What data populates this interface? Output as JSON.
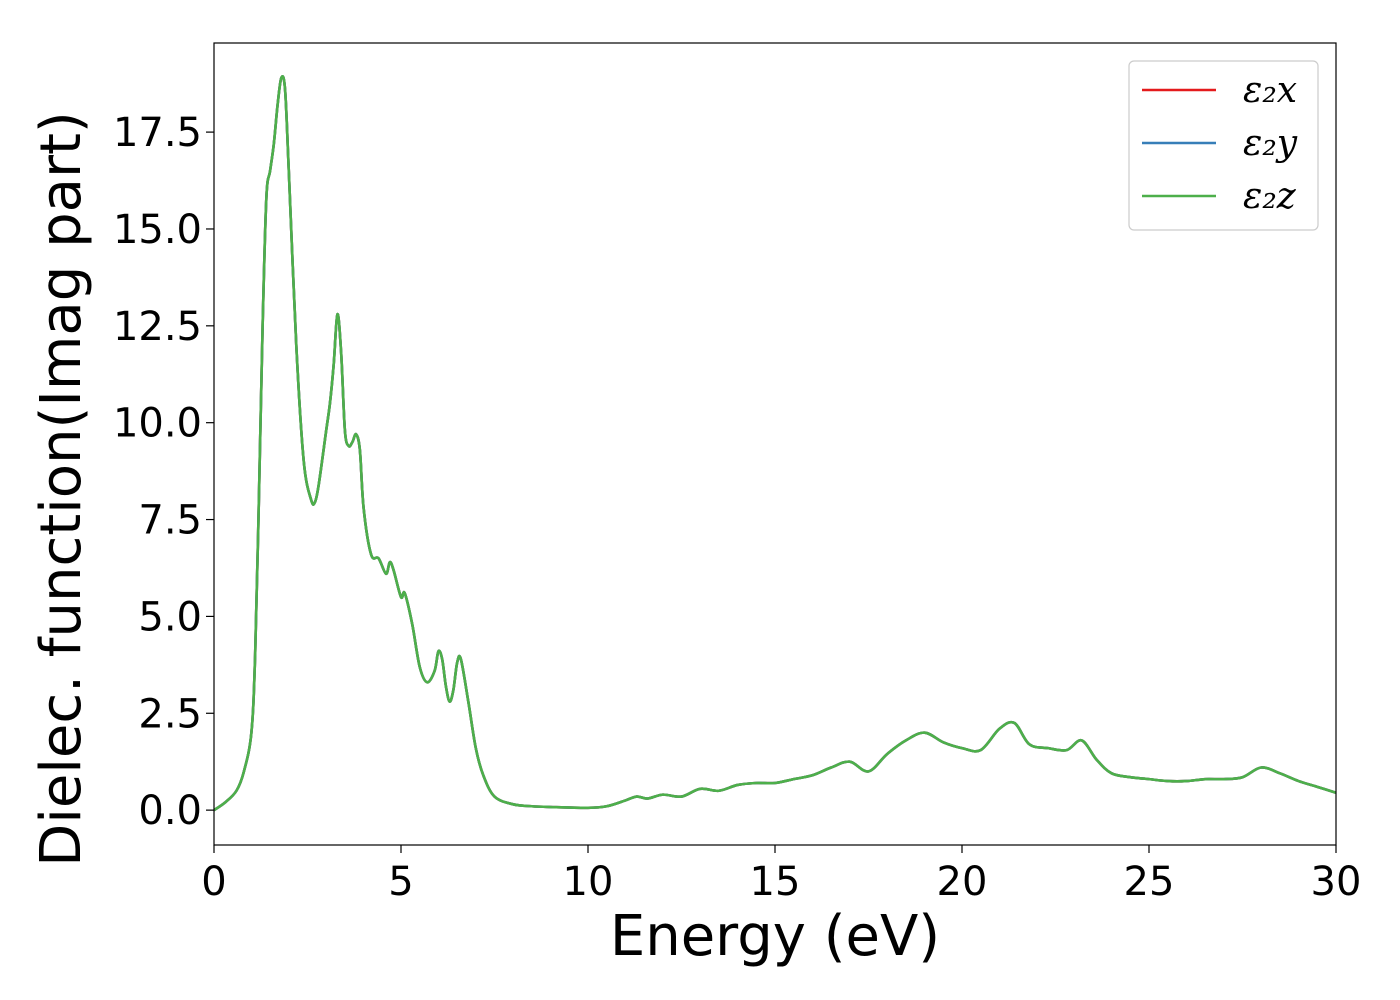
{
  "chart_data": {
    "type": "line",
    "title": "",
    "xlabel": "Energy (eV)",
    "ylabel": "Dielec. function(Imag part)",
    "xlim": [
      0,
      30
    ],
    "ylim": [
      -0.9,
      19.8
    ],
    "xticks": [
      0,
      5,
      10,
      15,
      20,
      25,
      30
    ],
    "xtick_labels": [
      "0",
      "5",
      "10",
      "15",
      "20",
      "25",
      "30"
    ],
    "yticks": [
      0.0,
      2.5,
      5.0,
      7.5,
      10.0,
      12.5,
      15.0,
      17.5
    ],
    "ytick_labels": [
      "0.0",
      "2.5",
      "5.0",
      "7.5",
      "10.0",
      "12.5",
      "15.0",
      "17.5"
    ],
    "grid": false,
    "legend_position": "top-right",
    "x": [
      0,
      0.3,
      0.6,
      0.8,
      1.0,
      1.1,
      1.2,
      1.3,
      1.4,
      1.5,
      1.6,
      1.7,
      1.8,
      1.9,
      2.0,
      2.2,
      2.4,
      2.6,
      2.7,
      2.8,
      3.0,
      3.1,
      3.2,
      3.3,
      3.4,
      3.5,
      3.6,
      3.7,
      3.8,
      3.9,
      4.0,
      4.2,
      4.4,
      4.6,
      4.7,
      4.8,
      5.0,
      5.1,
      5.3,
      5.5,
      5.7,
      5.9,
      6.0,
      6.1,
      6.2,
      6.3,
      6.4,
      6.5,
      6.6,
      6.8,
      7.0,
      7.2,
      7.5,
      8.0,
      8.5,
      9.0,
      10.0,
      10.5,
      11.0,
      11.3,
      11.6,
      12.0,
      12.5,
      13.0,
      13.5,
      14.0,
      14.5,
      15.0,
      15.5,
      16.0,
      16.5,
      17.0,
      17.5,
      18.0,
      18.5,
      19.0,
      19.5,
      20.0,
      20.5,
      21.0,
      21.4,
      21.8,
      22.3,
      22.8,
      23.2,
      23.6,
      24.0,
      24.5,
      25.0,
      25.5,
      26.0,
      26.5,
      27.0,
      27.5,
      28.0,
      28.5,
      29.0,
      29.5,
      30.0
    ],
    "series": [
      {
        "name": "ε₂x",
        "color": "#e41a1c",
        "values": [
          0.0,
          0.2,
          0.5,
          1.0,
          2.0,
          4.0,
          8.0,
          12.5,
          15.8,
          16.5,
          17.2,
          18.2,
          18.9,
          18.6,
          16.5,
          12.0,
          9.0,
          8.0,
          7.95,
          8.4,
          9.8,
          10.5,
          11.5,
          12.8,
          11.8,
          9.8,
          9.4,
          9.5,
          9.7,
          9.3,
          7.8,
          6.6,
          6.5,
          6.1,
          6.4,
          6.2,
          5.5,
          5.6,
          4.8,
          3.7,
          3.3,
          3.6,
          4.1,
          3.9,
          3.2,
          2.8,
          3.1,
          3.8,
          3.9,
          2.8,
          1.6,
          0.9,
          0.35,
          0.15,
          0.1,
          0.08,
          0.06,
          0.1,
          0.25,
          0.35,
          0.3,
          0.4,
          0.35,
          0.55,
          0.5,
          0.65,
          0.7,
          0.7,
          0.8,
          0.9,
          1.1,
          1.25,
          1.0,
          1.45,
          1.8,
          2.0,
          1.75,
          1.6,
          1.55,
          2.1,
          2.25,
          1.7,
          1.6,
          1.55,
          1.8,
          1.3,
          0.95,
          0.85,
          0.8,
          0.75,
          0.75,
          0.8,
          0.8,
          0.85,
          1.1,
          0.95,
          0.75,
          0.6,
          0.45
        ]
      },
      {
        "name": "ε₂y",
        "color": "#377eb8",
        "values": [
          0.0,
          0.2,
          0.5,
          1.0,
          2.0,
          4.0,
          8.0,
          12.5,
          15.8,
          16.5,
          17.2,
          18.2,
          18.9,
          18.6,
          16.5,
          12.0,
          9.0,
          8.0,
          7.95,
          8.4,
          9.8,
          10.5,
          11.5,
          12.8,
          11.8,
          9.8,
          9.4,
          9.5,
          9.7,
          9.3,
          7.8,
          6.6,
          6.5,
          6.1,
          6.4,
          6.2,
          5.5,
          5.6,
          4.8,
          3.7,
          3.3,
          3.6,
          4.1,
          3.9,
          3.2,
          2.8,
          3.1,
          3.8,
          3.9,
          2.8,
          1.6,
          0.9,
          0.35,
          0.15,
          0.1,
          0.08,
          0.06,
          0.1,
          0.25,
          0.35,
          0.3,
          0.4,
          0.35,
          0.55,
          0.5,
          0.65,
          0.7,
          0.7,
          0.8,
          0.9,
          1.1,
          1.25,
          1.0,
          1.45,
          1.8,
          2.0,
          1.75,
          1.6,
          1.55,
          2.1,
          2.25,
          1.7,
          1.6,
          1.55,
          1.8,
          1.3,
          0.95,
          0.85,
          0.8,
          0.75,
          0.75,
          0.8,
          0.8,
          0.85,
          1.1,
          0.95,
          0.75,
          0.6,
          0.45
        ]
      },
      {
        "name": "ε₂z",
        "color": "#4daf4a",
        "values": [
          0.0,
          0.2,
          0.5,
          1.0,
          2.0,
          4.0,
          8.0,
          12.5,
          15.8,
          16.5,
          17.2,
          18.2,
          18.9,
          18.6,
          16.5,
          12.0,
          9.0,
          8.0,
          7.95,
          8.4,
          9.8,
          10.5,
          11.5,
          12.8,
          11.8,
          9.8,
          9.4,
          9.5,
          9.7,
          9.3,
          7.8,
          6.6,
          6.5,
          6.1,
          6.4,
          6.2,
          5.5,
          5.6,
          4.8,
          3.7,
          3.3,
          3.6,
          4.1,
          3.9,
          3.2,
          2.8,
          3.1,
          3.8,
          3.9,
          2.8,
          1.6,
          0.9,
          0.35,
          0.15,
          0.1,
          0.08,
          0.06,
          0.1,
          0.25,
          0.35,
          0.3,
          0.4,
          0.35,
          0.55,
          0.5,
          0.65,
          0.7,
          0.7,
          0.8,
          0.9,
          1.1,
          1.25,
          1.0,
          1.45,
          1.8,
          2.0,
          1.75,
          1.6,
          1.55,
          2.1,
          2.25,
          1.7,
          1.6,
          1.55,
          1.8,
          1.3,
          0.95,
          0.85,
          0.8,
          0.75,
          0.75,
          0.8,
          0.8,
          0.85,
          1.1,
          0.95,
          0.75,
          0.6,
          0.45
        ]
      }
    ]
  }
}
